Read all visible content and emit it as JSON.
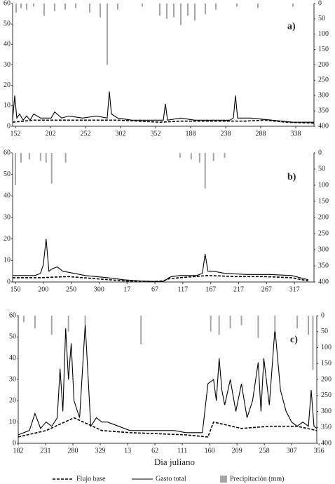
{
  "chart_data": [
    {
      "type": "line",
      "label": "a)",
      "xlim": [
        0,
        430
      ],
      "ylim": [
        0,
        60
      ],
      "y2lim": [
        400,
        0
      ],
      "yticks": [
        0,
        10,
        20,
        30,
        40,
        50,
        60
      ],
      "y2ticks": [
        0,
        50,
        100,
        150,
        200,
        250,
        300,
        350,
        400
      ],
      "xticks": [
        {
          "value": 4,
          "label": "152"
        },
        {
          "value": 54,
          "label": "202"
        },
        {
          "value": 104,
          "label": "252"
        },
        {
          "value": 154,
          "label": "302"
        },
        {
          "value": 204,
          "label": "352"
        },
        {
          "value": 254,
          "label": "188"
        },
        {
          "value": 304,
          "label": "238"
        },
        {
          "value": 354,
          "label": "288"
        },
        {
          "value": 404,
          "label": "338"
        }
      ],
      "series": [
        {
          "name": "Flujo base",
          "color": "#000000",
          "dash": true,
          "x": [
            0,
            30,
            60,
            90,
            120,
            150,
            180,
            210,
            240,
            270,
            300,
            330,
            360,
            390,
            430
          ],
          "values": [
            2,
            3,
            3,
            3,
            3,
            3,
            2.5,
            2,
            2.5,
            2.5,
            2.5,
            2.5,
            3,
            2,
            1.5
          ]
        },
        {
          "name": "Gasto total",
          "color": "#000000",
          "dash": false,
          "x": [
            0,
            3,
            6,
            10,
            15,
            20,
            25,
            30,
            40,
            55,
            60,
            70,
            80,
            100,
            120,
            135,
            138,
            141,
            150,
            170,
            190,
            210,
            215,
            218,
            221,
            240,
            260,
            290,
            310,
            315,
            318,
            321,
            340,
            370,
            400,
            430
          ],
          "values": [
            3,
            15,
            4,
            6,
            3,
            5,
            3,
            6,
            4,
            4,
            7,
            4,
            5,
            4,
            5,
            4,
            17,
            6,
            4,
            3,
            3,
            3,
            3,
            11,
            3,
            4,
            3,
            3,
            3,
            4,
            15,
            4,
            4,
            3,
            2,
            2
          ]
        },
        {
          "name": "Precipitación (mm)",
          "color": "#a6a6a6",
          "type": "bar",
          "axis": "y2",
          "x": [
            5,
            12,
            20,
            30,
            45,
            60,
            75,
            90,
            110,
            125,
            135,
            150,
            185,
            210,
            220,
            230,
            240,
            250,
            260,
            275,
            290,
            320,
            350,
            400
          ],
          "values": [
            30,
            15,
            20,
            10,
            40,
            25,
            20,
            15,
            30,
            45,
            200,
            20,
            10,
            40,
            50,
            45,
            70,
            40,
            55,
            35,
            20,
            10,
            15,
            10
          ]
        }
      ]
    },
    {
      "type": "line",
      "label": "b)",
      "xlim": [
        0,
        540
      ],
      "ylim": [
        0,
        60
      ],
      "y2lim": [
        400,
        0
      ],
      "yticks": [
        0,
        10,
        20,
        30,
        40,
        50,
        60
      ],
      "y2ticks": [
        0,
        50,
        100,
        150,
        200,
        250,
        300,
        350,
        400
      ],
      "xticks": [
        {
          "value": 5,
          "label": "150"
        },
        {
          "value": 55,
          "label": "200"
        },
        {
          "value": 105,
          "label": "250"
        },
        {
          "value": 155,
          "label": "300"
        },
        {
          "value": 205,
          "label": "17"
        },
        {
          "value": 255,
          "label": "67"
        },
        {
          "value": 305,
          "label": "117"
        },
        {
          "value": 355,
          "label": "167"
        },
        {
          "value": 405,
          "label": "217"
        },
        {
          "value": 455,
          "label": "267"
        },
        {
          "value": 505,
          "label": "317"
        }
      ],
      "series": [
        {
          "color": "#000000",
          "dash": true,
          "x": [
            0,
            50,
            100,
            150,
            200,
            250,
            270,
            280,
            300,
            350,
            400,
            450,
            500,
            530
          ],
          "values": [
            2,
            2,
            2.5,
            1.5,
            0.5,
            0.2,
            0.5,
            1.5,
            2,
            3,
            2.5,
            2.5,
            2,
            0.5
          ]
        },
        {
          "color": "#000000",
          "dash": false,
          "x": [
            0,
            40,
            50,
            55,
            60,
            65,
            70,
            80,
            90,
            110,
            130,
            170,
            200,
            230,
            250,
            270,
            275,
            280,
            285,
            300,
            330,
            340,
            345,
            350,
            360,
            380,
            420,
            460,
            500,
            530
          ],
          "values": [
            3,
            3,
            4,
            8,
            20,
            5,
            6,
            7,
            5,
            4,
            3,
            2,
            1,
            0.5,
            0.3,
            0.2,
            1,
            2,
            2.5,
            3,
            3,
            4,
            13,
            5,
            5,
            4,
            3.5,
            3.5,
            3,
            1
          ]
        },
        {
          "color": "#a6a6a6",
          "type": "bar",
          "axis": "y2",
          "x": [
            0,
            5,
            15,
            30,
            50,
            60,
            70,
            95,
            300,
            320,
            335,
            345,
            360,
            380
          ],
          "values": [
            20,
            100,
            30,
            20,
            25,
            30,
            95,
            30,
            15,
            20,
            30,
            110,
            25,
            15
          ]
        }
      ]
    },
    {
      "type": "line",
      "label": "c)",
      "x_label": "Dia juliano",
      "xlim": [
        0,
        535
      ],
      "ylim": [
        0,
        60
      ],
      "y2lim": [
        400,
        0
      ],
      "yticks": [
        0,
        10,
        20,
        30,
        40,
        50,
        60
      ],
      "y2ticks": [
        0,
        50,
        100,
        150,
        200,
        250,
        300,
        350,
        400
      ],
      "xticks": [
        {
          "value": 0,
          "label": "182"
        },
        {
          "value": 49,
          "label": "231"
        },
        {
          "value": 98,
          "label": "280"
        },
        {
          "value": 147,
          "label": "329"
        },
        {
          "value": 196,
          "label": "13"
        },
        {
          "value": 245,
          "label": "62"
        },
        {
          "value": 294,
          "label": "111"
        },
        {
          "value": 343,
          "label": "160"
        },
        {
          "value": 392,
          "label": "209"
        },
        {
          "value": 441,
          "label": "258"
        },
        {
          "value": 490,
          "label": "307"
        },
        {
          "value": 539,
          "label": "356"
        }
      ],
      "series": [
        {
          "color": "#000000",
          "dash": true,
          "x": [
            0,
            50,
            100,
            150,
            200,
            300,
            340,
            350,
            400,
            450,
            500,
            535
          ],
          "values": [
            3,
            6,
            12,
            6,
            5,
            4,
            3,
            10,
            7,
            8,
            8,
            6
          ]
        },
        {
          "color": "#000000",
          "dash": false,
          "x": [
            0,
            20,
            30,
            40,
            50,
            60,
            70,
            75,
            80,
            85,
            90,
            95,
            100,
            110,
            120,
            130,
            140,
            150,
            160,
            180,
            200,
            240,
            280,
            300,
            330,
            340,
            350,
            355,
            360,
            365,
            370,
            380,
            390,
            400,
            410,
            420,
            430,
            435,
            440,
            450,
            460,
            470,
            480,
            490,
            500,
            510,
            520,
            525,
            530,
            535
          ],
          "values": [
            4,
            6,
            14,
            7,
            10,
            8,
            12,
            35,
            15,
            54,
            30,
            47,
            20,
            12,
            56,
            8,
            12,
            10,
            10,
            8,
            6,
            6,
            6,
            5,
            5,
            28,
            30,
            20,
            40,
            25,
            18,
            30,
            15,
            28,
            12,
            20,
            38,
            15,
            40,
            18,
            54,
            25,
            15,
            10,
            8,
            10,
            8,
            25,
            8,
            7
          ]
        },
        {
          "color": "#a6a6a6",
          "type": "bar",
          "axis": "y2",
          "x": [
            10,
            30,
            60,
            90,
            120,
            220,
            345,
            360,
            380,
            400,
            430,
            460,
            500,
            520,
            528
          ],
          "values": [
            20,
            40,
            60,
            50,
            30,
            90,
            50,
            60,
            40,
            30,
            70,
            50,
            40,
            60,
            170
          ]
        }
      ]
    }
  ]
}
